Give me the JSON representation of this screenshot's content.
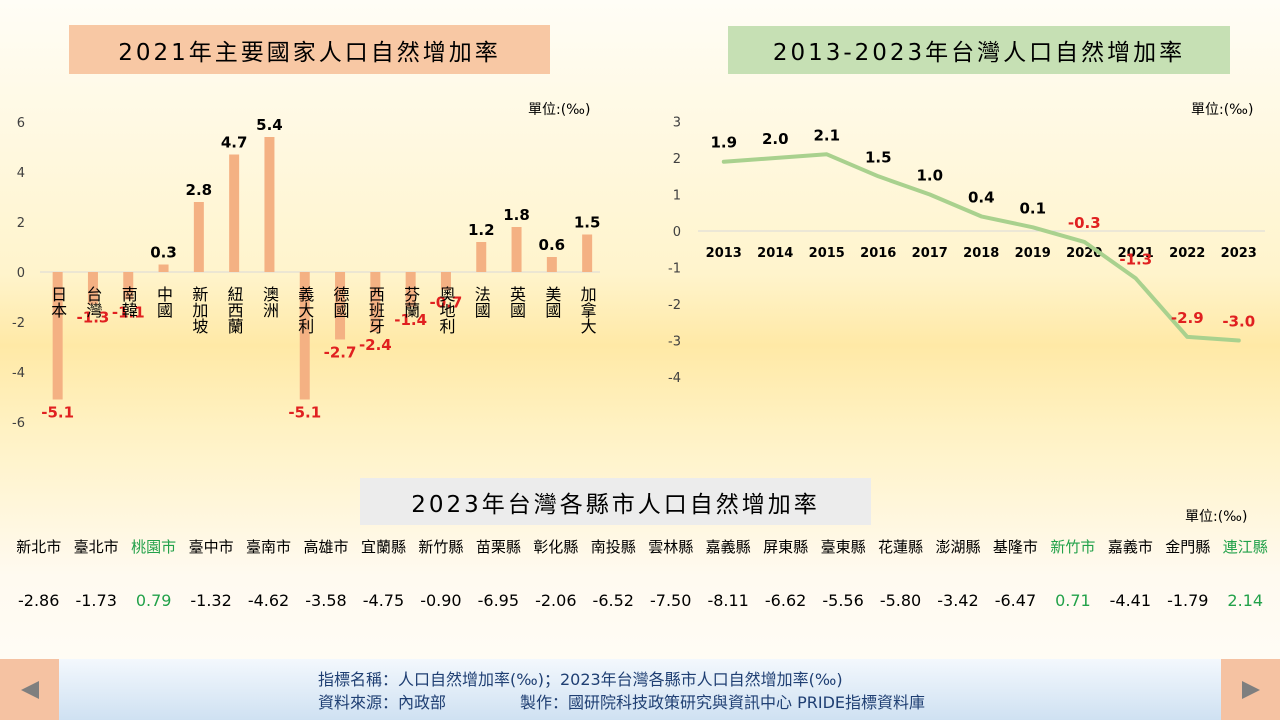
{
  "titles": {
    "chart1": "2021年主要國家人口自然增加率",
    "chart2": "2013-2023年台灣人口自然增加率",
    "table": "2023年台灣各縣市人口自然增加率"
  },
  "unit_label": "單位:(‰)",
  "chart_data": [
    {
      "type": "bar",
      "title": "2021年主要國家人口自然增加率",
      "unit": "單位:(‰)",
      "categories": [
        "日本",
        "台灣",
        "南韓",
        "中國",
        "新加坡",
        "紐西蘭",
        "澳洲",
        "義大利",
        "德國",
        "西班牙",
        "芬蘭",
        "奧地利",
        "法國",
        "英國",
        "美國",
        "加拿大"
      ],
      "values": [
        -5.1,
        -1.3,
        -1.1,
        0.3,
        2.8,
        4.7,
        5.4,
        -5.1,
        -2.7,
        -2.4,
        -1.4,
        -0.7,
        1.2,
        1.8,
        0.6,
        1.5
      ],
      "ylim": [
        -6,
        6
      ],
      "yticks": [
        6,
        4,
        2,
        0,
        -2,
        -4,
        -6
      ],
      "bar_color": "#f4b183",
      "negative_label_color": "#e02020",
      "grid": false
    },
    {
      "type": "line",
      "title": "2013-2023年台灣人口自然增加率",
      "unit": "單位:(‰)",
      "x": [
        "2013",
        "2014",
        "2015",
        "2016",
        "2017",
        "2018",
        "2019",
        "2020",
        "2021",
        "2022",
        "2023"
      ],
      "values": [
        1.9,
        2.0,
        2.1,
        1.5,
        1.0,
        0.4,
        0.1,
        -0.3,
        -1.3,
        -2.9,
        -3.0
      ],
      "ylim": [
        -4,
        3
      ],
      "yticks": [
        3,
        2,
        1,
        0,
        -1,
        -2,
        -3,
        -4
      ],
      "line_color": "#a9d18e",
      "negative_label_color": "#e02020",
      "grid": false
    },
    {
      "type": "table",
      "title": "2023年台灣各縣市人口自然增加率",
      "unit": "單位:(‰)",
      "columns": [
        "新北市",
        "臺北市",
        "桃園市",
        "臺中市",
        "臺南市",
        "高雄市",
        "宜蘭縣",
        "新竹縣",
        "苗栗縣",
        "彰化縣",
        "南投縣",
        "雲林縣",
        "嘉義縣",
        "屏東縣",
        "臺東縣",
        "花蓮縣",
        "澎湖縣",
        "基隆市",
        "新竹市",
        "嘉義市",
        "金門縣",
        "連江縣"
      ],
      "values": [
        "-2.86",
        "-1.73",
        "0.79",
        "-1.32",
        "-4.62",
        "-3.58",
        "-4.75",
        "-0.90",
        "-6.95",
        "-2.06",
        "-6.52",
        "-7.50",
        "-8.11",
        "-6.62",
        "-5.56",
        "-5.80",
        "-3.42",
        "-6.47",
        "0.71",
        "-4.41",
        "-1.79",
        "2.14"
      ],
      "positive_color": "#22a14a"
    }
  ],
  "footer": {
    "line1": "指標名稱：人口自然增加率(‰)；2023年台灣各縣市人口自然增加率(‰)",
    "line2a": "資料來源：內政部",
    "line2b": "製作：國研院科技政策研究與資訊中心 PRIDE指標資料庫"
  },
  "nav": {
    "prev_icon": "triangle-left-icon",
    "next_icon": "triangle-right-icon"
  }
}
